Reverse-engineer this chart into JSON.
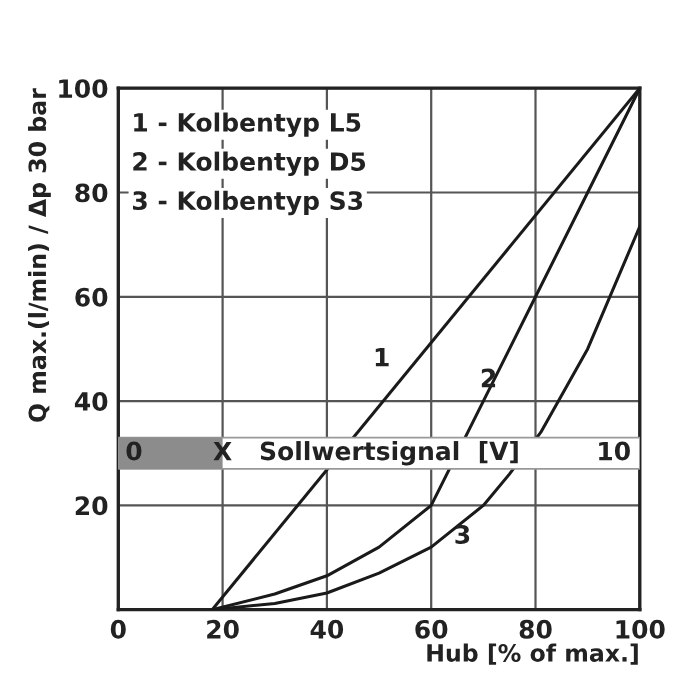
{
  "chart_data": {
    "type": "line",
    "xlabel": "Hub [% of max.]",
    "ylabel": "Q max.(l/min) / Δp 30 bar",
    "series": [
      {
        "name": "1",
        "color": "#1a1a1a",
        "x": [
          18,
          100
        ],
        "values": [
          0,
          100
        ]
      },
      {
        "name": "2",
        "color": "#1a1a1a",
        "x": [
          18,
          30,
          40,
          50,
          60,
          63,
          70,
          80,
          90,
          100
        ],
        "values": [
          0,
          3,
          6.5,
          12,
          20,
          26,
          40,
          60,
          80,
          100
        ]
      },
      {
        "name": "3",
        "color": "#1a1a1a",
        "x": [
          18,
          30,
          40,
          50,
          60,
          70,
          75,
          81,
          90,
          100
        ],
        "values": [
          0,
          1.2,
          3.2,
          7,
          12,
          20,
          26,
          34,
          50,
          73.5
        ]
      }
    ],
    "xlim": [
      0,
      100
    ],
    "ylim": [
      0,
      100
    ],
    "xticks": [
      0,
      20,
      40,
      60,
      80,
      100
    ],
    "yticks": [
      {
        "value": 0,
        "label": null
      },
      20,
      40,
      60,
      80,
      100
    ],
    "grid": true,
    "legend": false,
    "marker": "none",
    "line_style": "solid",
    "bands": [
      {
        "axis": "y",
        "from": 27,
        "to": 33,
        "color": "#ffffff"
      }
    ],
    "annotations": [
      "1 - Kolbentyp L5",
      "2 - Kolbentyp D5",
      "3 - Kolbentyp S3",
      "0",
      "X",
      "Sollwertsignal  [V]",
      "10"
    ]
  }
}
